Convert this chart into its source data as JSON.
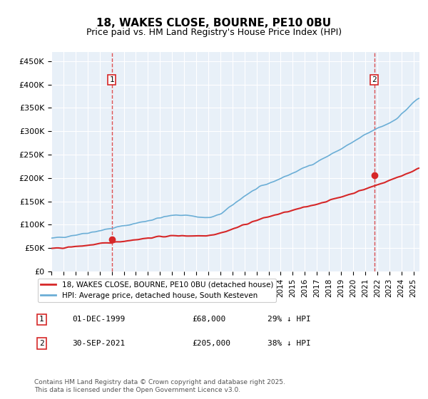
{
  "title": "18, WAKES CLOSE, BOURNE, PE10 0BU",
  "subtitle": "Price paid vs. HM Land Registry's House Price Index (HPI)",
  "ylabel_ticks": [
    "£0",
    "£50K",
    "£100K",
    "£150K",
    "£200K",
    "£250K",
    "£300K",
    "£350K",
    "£400K",
    "£450K"
  ],
  "ytick_values": [
    0,
    50000,
    100000,
    150000,
    200000,
    250000,
    300000,
    350000,
    400000,
    450000
  ],
  "ylim": [
    0,
    470000
  ],
  "xlim_start": 1995.0,
  "xlim_end": 2025.5,
  "hpi_color": "#6baed6",
  "price_color": "#d62728",
  "marker1_date": 2000.0,
  "marker1_value": 68000,
  "marker2_date": 2021.75,
  "marker2_value": 205000,
  "legend_label1": "18, WAKES CLOSE, BOURNE, PE10 0BU (detached house)",
  "legend_label2": "HPI: Average price, detached house, South Kesteven",
  "annotation1_label": "1",
  "annotation2_label": "2",
  "note1_date": "01-DEC-1999",
  "note1_price": "£68,000",
  "note1_hpi": "29% ↓ HPI",
  "note2_date": "30-SEP-2021",
  "note2_price": "£205,000",
  "note2_hpi": "38% ↓ HPI",
  "footer": "Contains HM Land Registry data © Crown copyright and database right 2025.\nThis data is licensed under the Open Government Licence v3.0.",
  "background_color": "#e8f0f8",
  "plot_bg_color": "#e8f0f8"
}
